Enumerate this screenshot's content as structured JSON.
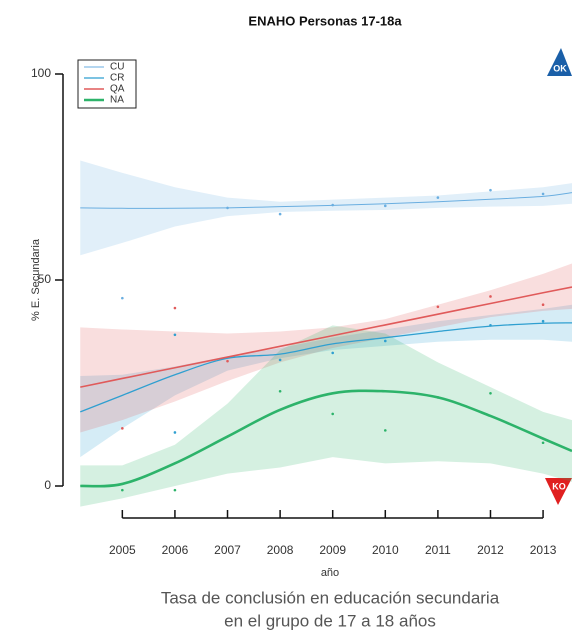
{
  "chart_data": {
    "type": "line",
    "title": "ENAHO Personas 17-18a",
    "ylabel": "% E. Secundaria",
    "xlabel": "año",
    "caption": [
      "Tasa de conclusión en educación secundaria",
      "en el grupo de 17 a 18 años"
    ],
    "badges": [
      "OK",
      "KO"
    ],
    "xlim": [
      2004.1,
      2013.55
    ],
    "ylim": [
      -5,
      105
    ],
    "xticks": [
      2005,
      2006,
      2007,
      2008,
      2009,
      2010,
      2011,
      2012,
      2013
    ],
    "yticks": [
      0,
      50,
      100
    ],
    "x": [
      2004.2,
      2005,
      2006,
      2007,
      2008,
      2009,
      2010,
      2011,
      2012,
      2013,
      2013.55
    ],
    "series": [
      {
        "name": "CU",
        "color": "#6aaee0",
        "width": 1,
        "values": [
          67.5,
          67.4,
          67.4,
          67.5,
          67.8,
          68.1,
          68.5,
          69,
          69.6,
          70.3,
          71.2
        ],
        "lower": [
          56,
          59,
          63,
          65.5,
          66.5,
          66.8,
          67,
          67.5,
          67.8,
          68,
          68.5
        ],
        "upper": [
          79,
          76,
          72.5,
          70,
          69,
          69.5,
          70,
          70.5,
          71.5,
          72.5,
          73.5
        ],
        "points": {
          "x": [
            2005,
            2007,
            2008,
            2009,
            2010,
            2011,
            2012,
            2013
          ],
          "y": [
            45.6,
            67.5,
            66,
            68.2,
            68,
            70,
            71.8,
            70.9
          ]
        }
      },
      {
        "name": "CR",
        "color": "#2f9fd0",
        "width": 1.3,
        "values": [
          18,
          22,
          27,
          31,
          32,
          34.5,
          36,
          37.5,
          38.8,
          39.5,
          39.6
        ],
        "lower": [
          7,
          14,
          22,
          28,
          31,
          33,
          34,
          35,
          35.5,
          35.5,
          35
        ],
        "upper": [
          26.7,
          27,
          29,
          31.5,
          33.5,
          36,
          38,
          40,
          41.5,
          43,
          44
        ],
        "points": {
          "x": [
            2006,
            2006,
            2008,
            2009,
            2010,
            2012,
            2013
          ],
          "y": [
            36.7,
            13,
            30.6,
            32.3,
            35.2,
            39,
            40
          ]
        }
      },
      {
        "name": "QA",
        "color": "#e05a5a",
        "width": 1.6,
        "values": [
          24,
          26.1,
          28.7,
          31.3,
          33.9,
          36.5,
          39.1,
          41.7,
          44.3,
          46.9,
          48.3
        ],
        "lower": [
          13,
          16,
          20.5,
          25.5,
          30,
          33.5,
          36,
          38.5,
          41,
          42.5,
          43
        ],
        "upper": [
          38.5,
          38,
          37.5,
          37,
          37.5,
          38.5,
          40.5,
          44,
          47.5,
          51.5,
          54
        ],
        "points": {
          "x": [
            2005,
            2006,
            2007,
            2011,
            2012,
            2013
          ],
          "y": [
            14,
            43.2,
            30.3,
            43.5,
            46,
            44
          ]
        }
      },
      {
        "name": "NA",
        "color": "#2db36a",
        "width": 2.6,
        "values": [
          0,
          0.5,
          5.5,
          12,
          18.5,
          22.5,
          23,
          21.5,
          17,
          11.5,
          8.5
        ],
        "lower": [
          -5,
          -3,
          0,
          3,
          4.5,
          7,
          5.5,
          6,
          5.5,
          3,
          1
        ],
        "upper": [
          5,
          5,
          10,
          20,
          33,
          39,
          37,
          30,
          24,
          18,
          16
        ],
        "points": {
          "x": [
            2005,
            2006,
            2008,
            2009,
            2010,
            2011,
            2012,
            2013
          ],
          "y": [
            -1,
            -1,
            23,
            17.5,
            13.5,
            21.5,
            22.5,
            10.5
          ]
        }
      }
    ]
  }
}
